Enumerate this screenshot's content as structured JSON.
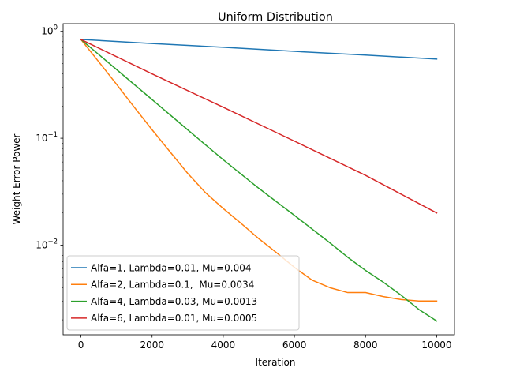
{
  "chart_data": {
    "type": "line",
    "title": "Uniform Distribution",
    "xlabel": "Iteration",
    "ylabel": "Weight Error Power",
    "xlim": [
      -500,
      10500
    ],
    "ylim": [
      0.00145,
      1.18
    ],
    "yscale": "log",
    "xticks": [
      0,
      2000,
      4000,
      6000,
      8000,
      10000
    ],
    "xtick_labels": [
      "0",
      "2000",
      "4000",
      "6000",
      "8000",
      "10000"
    ],
    "yticks_major": [
      0.01,
      0.1,
      1
    ],
    "ytick_labels": [
      {
        "base": "10",
        "exp": "−2"
      },
      {
        "base": "10",
        "exp": "−1"
      },
      {
        "base": "10",
        "exp": "0"
      }
    ],
    "yticks_minor": [
      0.002,
      0.003,
      0.004,
      0.005,
      0.006,
      0.007,
      0.008,
      0.009,
      0.02,
      0.03,
      0.04,
      0.05,
      0.06,
      0.07,
      0.08,
      0.09,
      0.2,
      0.3,
      0.4,
      0.5,
      0.6,
      0.7,
      0.8,
      0.9
    ],
    "grid": false,
    "legend_position": "lower-left",
    "series": [
      {
        "name": "Alfa=1, Lambda=0.01, Mu=0.004",
        "color": "#1f77b4",
        "x": [
          0,
          2000,
          4000,
          6000,
          8000,
          10000
        ],
        "y": [
          0.84,
          0.77,
          0.71,
          0.65,
          0.6,
          0.55
        ]
      },
      {
        "name": "Alfa=2, Lambda=0.1,  Mu=0.0034",
        "color": "#ff7f0e",
        "x": [
          0,
          500,
          1000,
          1500,
          2000,
          2500,
          3000,
          3500,
          4000,
          4500,
          5000,
          5500,
          6000,
          6500,
          7000,
          7500,
          8000,
          8500,
          9000,
          9500,
          10000
        ],
        "y": [
          0.84,
          0.52,
          0.32,
          0.195,
          0.12,
          0.075,
          0.047,
          0.031,
          0.022,
          0.016,
          0.0115,
          0.0085,
          0.0062,
          0.0047,
          0.004,
          0.0036,
          0.0036,
          0.0033,
          0.0031,
          0.003,
          0.003
        ]
      },
      {
        "name": "Alfa=4, Lambda=0.03, Mu=0.0013",
        "color": "#2ca02c",
        "x": [
          0,
          1000,
          2000,
          3000,
          4000,
          5000,
          6000,
          7000,
          7500,
          8000,
          8500,
          9000,
          9500,
          10000
        ],
        "y": [
          0.84,
          0.44,
          0.23,
          0.12,
          0.063,
          0.034,
          0.019,
          0.0105,
          0.0077,
          0.0058,
          0.0045,
          0.0034,
          0.0025,
          0.00195
        ]
      },
      {
        "name": "Alfa=6, Lambda=0.01, Mu=0.0005",
        "color": "#d62728",
        "x": [
          0,
          2000,
          4000,
          6000,
          8000,
          10000
        ],
        "y": [
          0.84,
          0.4,
          0.195,
          0.094,
          0.045,
          0.02
        ]
      }
    ]
  }
}
